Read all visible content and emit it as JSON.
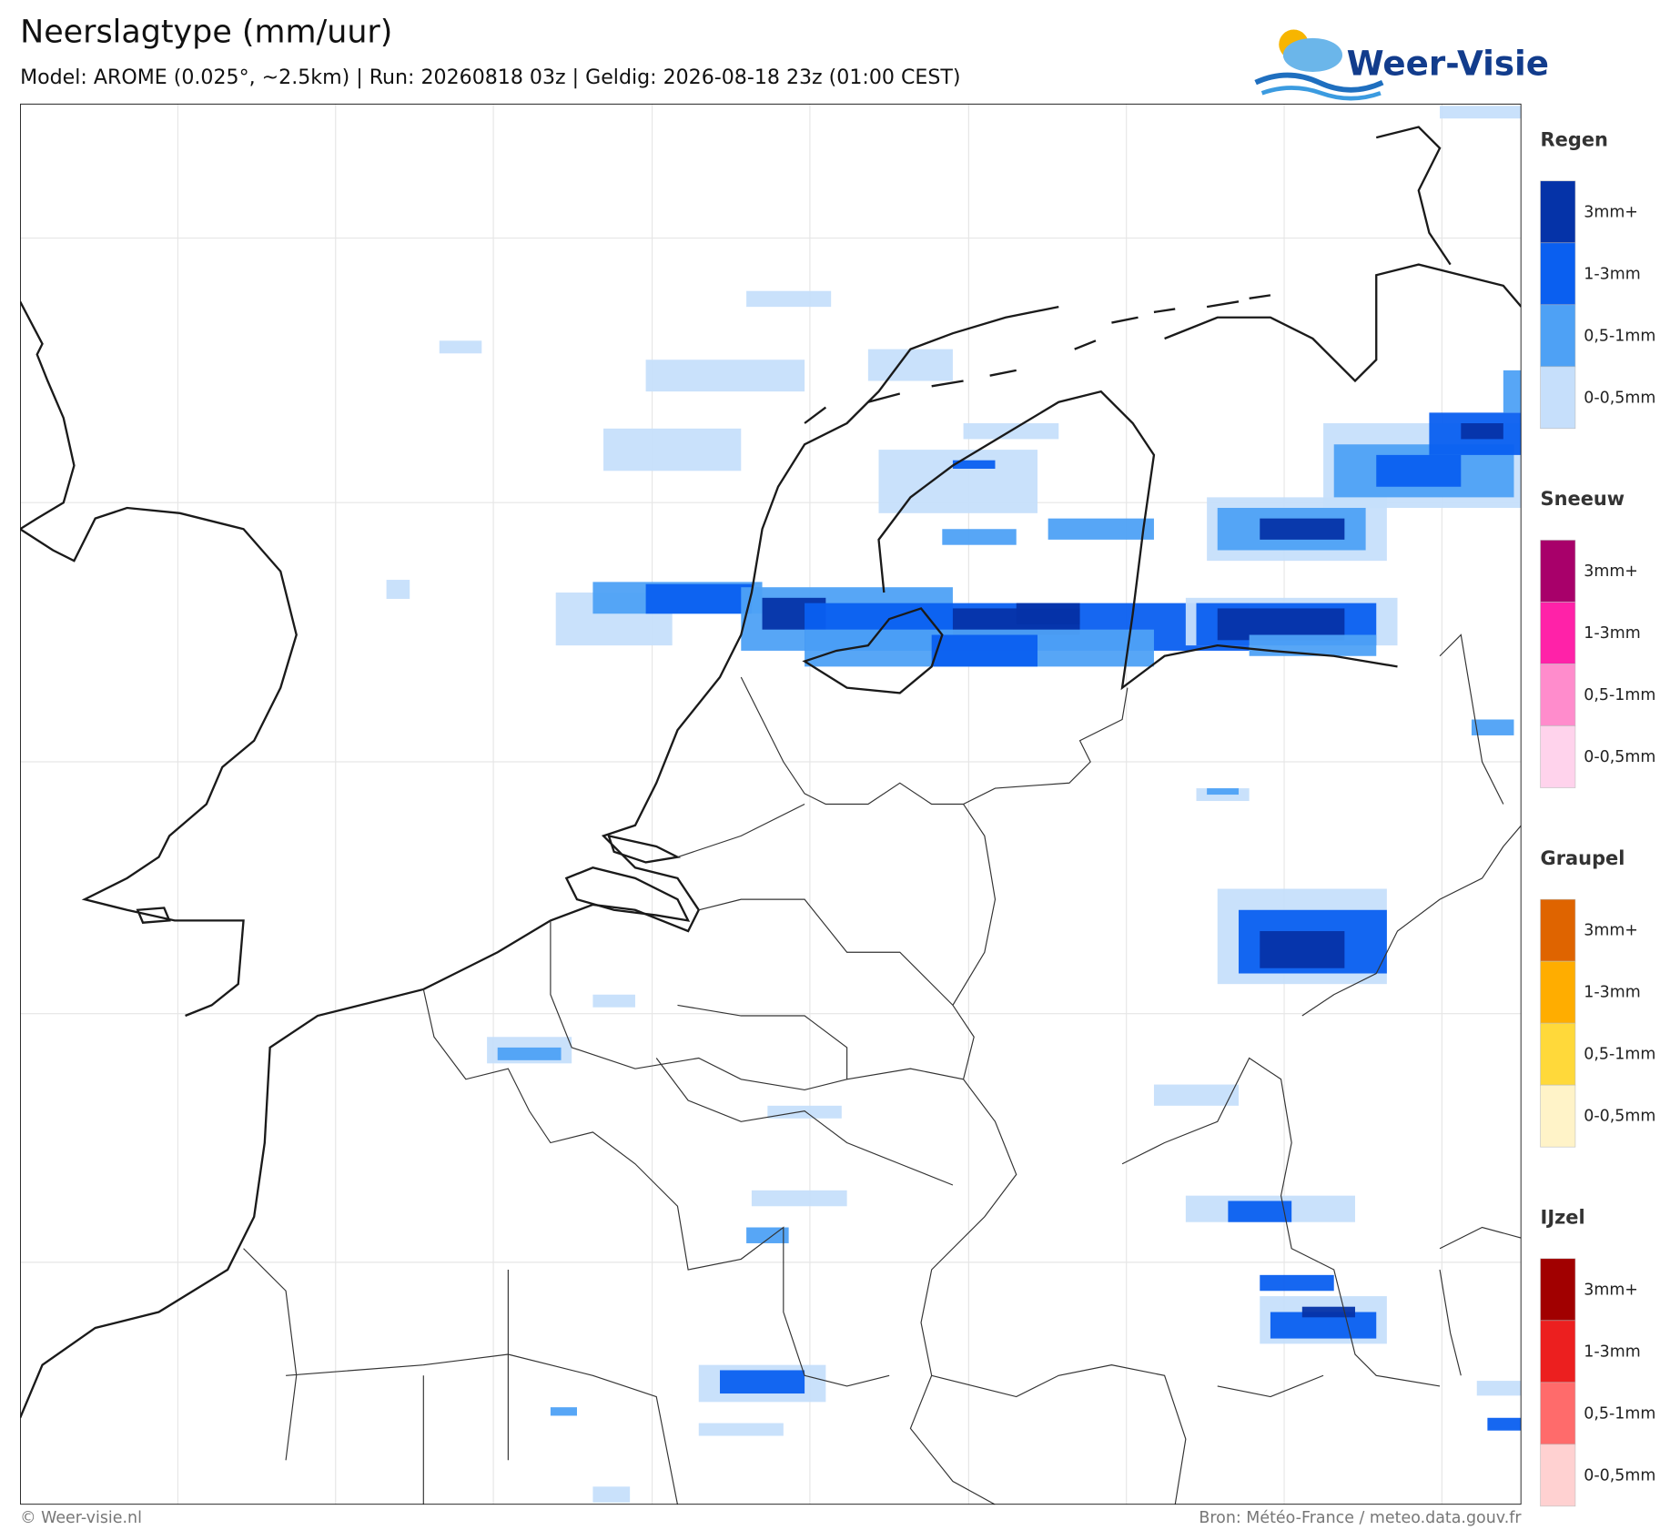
{
  "header": {
    "title": "Neerslagtype (mm/uur)",
    "subtitle": "Model: AROME (0.025°, ~2.5km)  |  Run: 20260818 03z  |  Geldig: 2026-08-18 23z (01:00 CEST)"
  },
  "logo": {
    "text": "Weer-Visie"
  },
  "legend": {
    "groups": [
      {
        "title": "Regen",
        "items": [
          {
            "label": "3mm+"
          },
          {
            "label": "1-3mm"
          },
          {
            "label": "0,5-1mm"
          },
          {
            "label": "0-0,5mm"
          }
        ]
      },
      {
        "title": "Sneeuw",
        "items": [
          {
            "label": "3mm+"
          },
          {
            "label": "1-3mm"
          },
          {
            "label": "0,5-1mm"
          },
          {
            "label": "0-0,5mm"
          }
        ]
      },
      {
        "title": "Graupel",
        "items": [
          {
            "label": "3mm+"
          },
          {
            "label": "1-3mm"
          },
          {
            "label": "0,5-1mm"
          },
          {
            "label": "0-0,5mm"
          }
        ]
      },
      {
        "title": "IJzel",
        "items": [
          {
            "label": "3mm+"
          },
          {
            "label": "1-3mm"
          },
          {
            "label": "0,5-1mm"
          },
          {
            "label": "0-0,5mm"
          }
        ]
      }
    ]
  },
  "footer": {
    "left": "© Weer-visie.nl",
    "right": "Bron: Météo-France / meteo.data.gouv.fr"
  }
}
